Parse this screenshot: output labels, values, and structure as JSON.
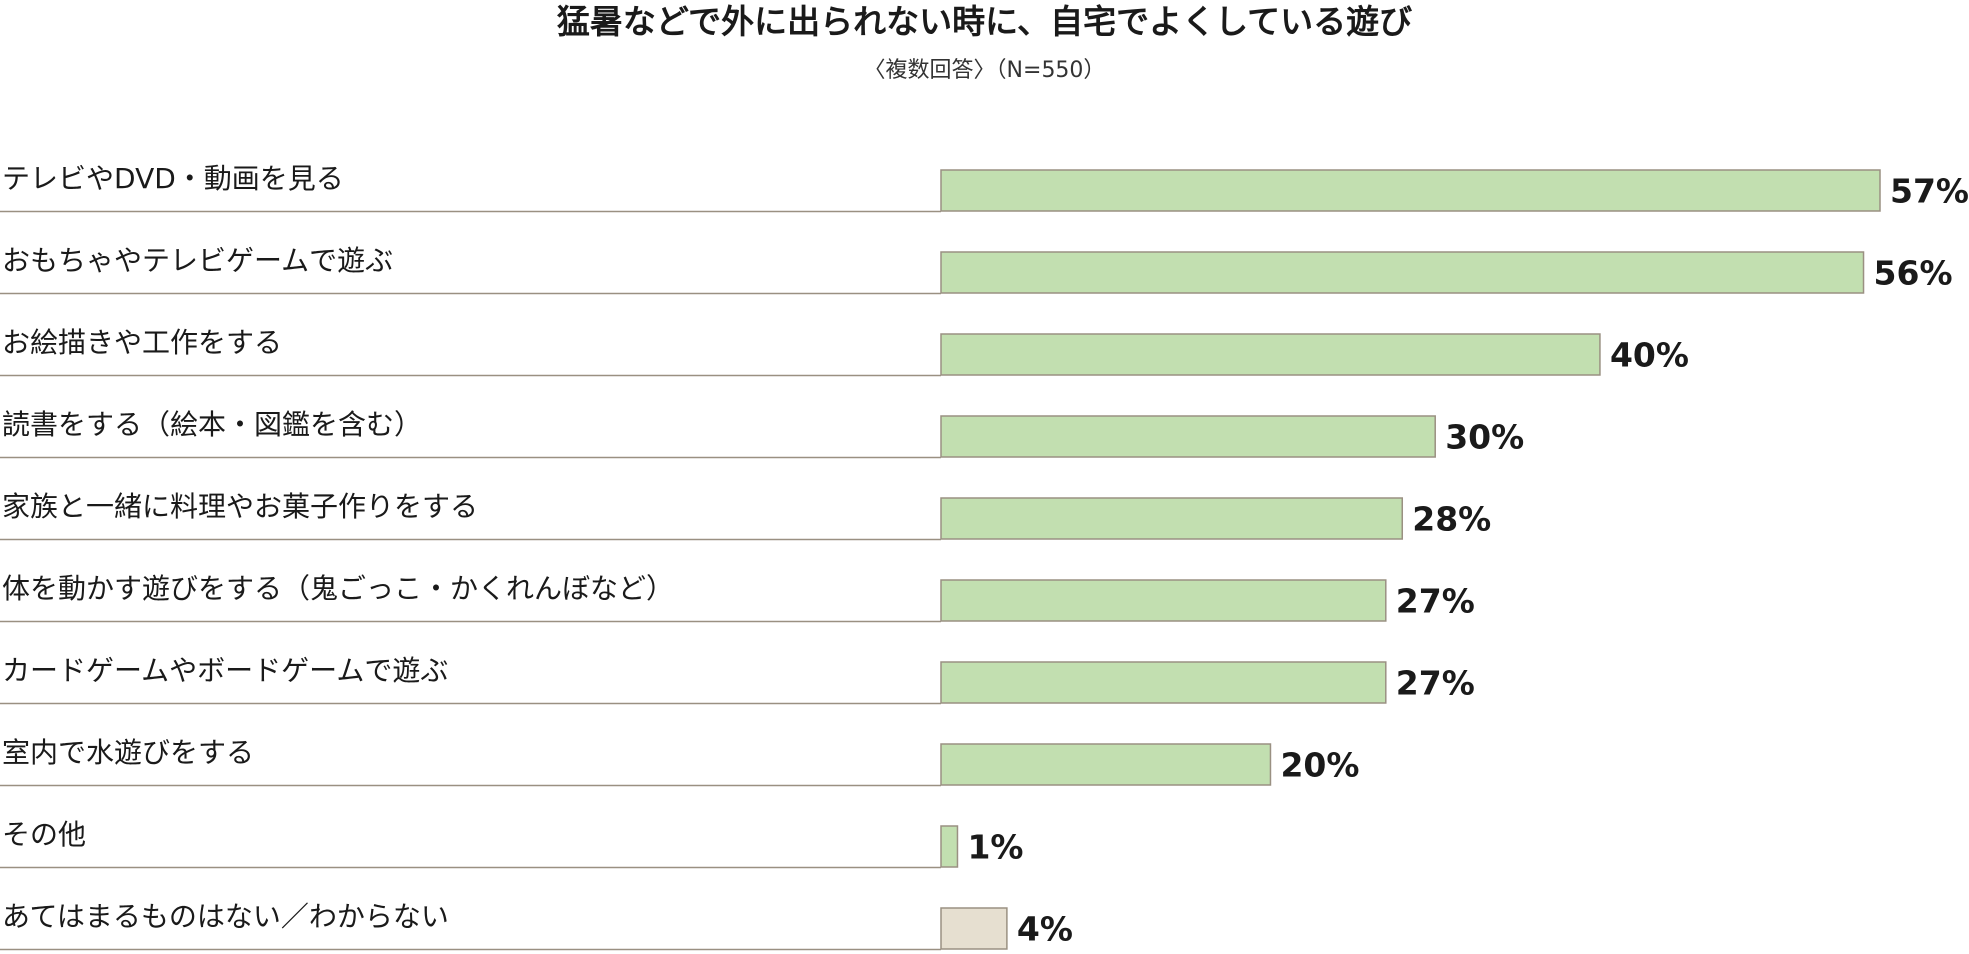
{
  "chart_data": {
    "type": "bar",
    "orientation": "horizontal",
    "title": "猛暑などで外に出られない時に、自宅でよくしている遊び",
    "subtitle": "〈複数回答〉（N=550）",
    "unit": "%",
    "xlim": [
      0,
      57
    ],
    "grid": false,
    "legend": "none",
    "categories": [
      "テレビやDVD・動画を見る",
      "おもちゃやテレビゲームで遊ぶ",
      "お絵描きや工作をする",
      "読書をする（絵本・図鑑を含む）",
      "家族と一緒に料理やお菓子作りをする",
      "体を動かす遊びをする（鬼ごっこ・かくれんぼなど）",
      "カードゲームやボードゲームで遊ぶ",
      "室内で水遊びをする",
      "その他",
      "あてはまるものはない／わからない"
    ],
    "values": [
      57,
      56,
      40,
      30,
      28,
      27,
      27,
      20,
      1,
      4
    ],
    "value_labels": [
      "57%",
      "56%",
      "40%",
      "30%",
      "28%",
      "27%",
      "27%",
      "20%",
      "1%",
      "4%"
    ],
    "colors": {
      "bar": "#c2dfb0",
      "bar_last": "#e6dfd0",
      "bar_stroke": "#9a9082",
      "separator": "#9a9082"
    }
  }
}
